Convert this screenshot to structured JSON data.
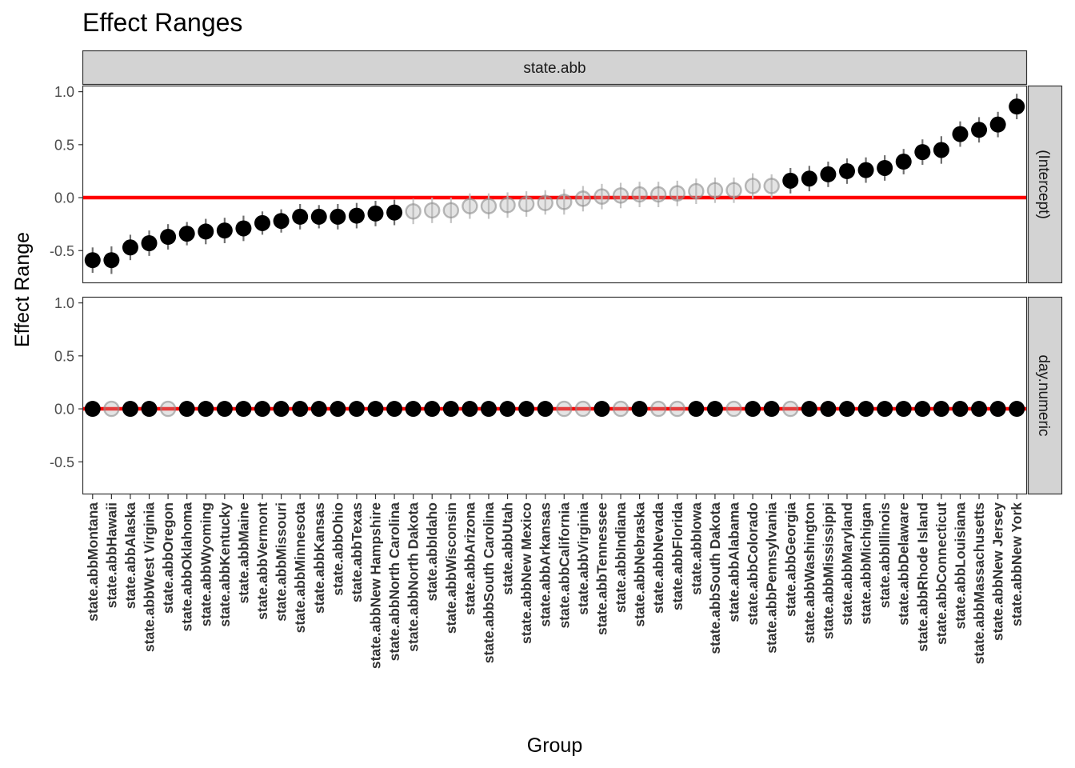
{
  "chart_data": {
    "type": "scatter",
    "title": "Effect Ranges",
    "xlabel": "Group",
    "ylabel": "Effect Range",
    "column_strip": "state.abb",
    "ylim": [
      -0.8,
      1.05
    ],
    "yticks": [
      -0.5,
      0.0,
      0.5,
      1.0
    ],
    "ytick_labels": [
      "-0.5",
      "0.0",
      "0.5",
      "1.0"
    ],
    "reference_line": 0,
    "grid": false,
    "colors": {
      "significant": "#000000",
      "not_significant": "#b3b3b3",
      "reference_line": "#ff0000",
      "strip_fill": "#d3d3d3",
      "error_bar": "#bdbdbd"
    },
    "categories": [
      "state.abbMontana",
      "state.abbHawaii",
      "state.abbAlaska",
      "state.abbWest Virginia",
      "state.abbOregon",
      "state.abbOklahoma",
      "state.abbWyoming",
      "state.abbKentucky",
      "state.abbMaine",
      "state.abbVermont",
      "state.abbMissouri",
      "state.abbMinnesota",
      "state.abbKansas",
      "state.abbOhio",
      "state.abbTexas",
      "state.abbNew Hampshire",
      "state.abbNorth Carolina",
      "state.abbNorth Dakota",
      "state.abbIdaho",
      "state.abbWisconsin",
      "state.abbArizona",
      "state.abbSouth Carolina",
      "state.abbUtah",
      "state.abbNew Mexico",
      "state.abbArkansas",
      "state.abbCalifornia",
      "state.abbVirginia",
      "state.abbTennessee",
      "state.abbIndiana",
      "state.abbNebraska",
      "state.abbNevada",
      "state.abbFlorida",
      "state.abbIowa",
      "state.abbSouth Dakota",
      "state.abbAlabama",
      "state.abbColorado",
      "state.abbPennsylvania",
      "state.abbGeorgia",
      "state.abbWashington",
      "state.abbMississippi",
      "state.abbMaryland",
      "state.abbMichigan",
      "state.abbIllinois",
      "state.abbDelaware",
      "state.abbRhode Island",
      "state.abbConnecticut",
      "state.abbLouisiana",
      "state.abbMassachusetts",
      "state.abbNew Jersey",
      "state.abbNew York"
    ],
    "panels": [
      {
        "name": "(Intercept)",
        "values": [
          -0.59,
          -0.59,
          -0.47,
          -0.43,
          -0.37,
          -0.34,
          -0.32,
          -0.31,
          -0.29,
          -0.24,
          -0.22,
          -0.18,
          -0.18,
          -0.18,
          -0.17,
          -0.15,
          -0.14,
          -0.13,
          -0.12,
          -0.12,
          -0.08,
          -0.08,
          -0.07,
          -0.06,
          -0.05,
          -0.04,
          -0.01,
          0.01,
          0.02,
          0.03,
          0.03,
          0.04,
          0.06,
          0.07,
          0.07,
          0.11,
          0.11,
          0.16,
          0.18,
          0.22,
          0.25,
          0.26,
          0.28,
          0.34,
          0.43,
          0.45,
          0.6,
          0.64,
          0.69,
          0.86
        ],
        "lower": [
          -0.71,
          -0.72,
          -0.59,
          -0.55,
          -0.49,
          -0.45,
          -0.44,
          -0.43,
          -0.41,
          -0.35,
          -0.33,
          -0.3,
          -0.29,
          -0.3,
          -0.29,
          -0.27,
          -0.26,
          -0.25,
          -0.24,
          -0.24,
          -0.2,
          -0.2,
          -0.19,
          -0.18,
          -0.16,
          -0.16,
          -0.13,
          -0.11,
          -0.1,
          -0.09,
          -0.09,
          -0.08,
          -0.06,
          -0.05,
          -0.05,
          -0.01,
          0.0,
          0.04,
          0.06,
          0.1,
          0.13,
          0.14,
          0.16,
          0.22,
          0.31,
          0.32,
          0.48,
          0.52,
          0.57,
          0.74
        ],
        "upper": [
          -0.47,
          -0.46,
          -0.35,
          -0.31,
          -0.25,
          -0.23,
          -0.2,
          -0.19,
          -0.17,
          -0.13,
          -0.11,
          -0.06,
          -0.07,
          -0.06,
          -0.05,
          -0.03,
          -0.02,
          -0.01,
          0.0,
          0.0,
          0.04,
          0.04,
          0.05,
          0.06,
          0.07,
          0.08,
          0.11,
          0.13,
          0.14,
          0.15,
          0.15,
          0.16,
          0.18,
          0.19,
          0.19,
          0.23,
          0.22,
          0.28,
          0.3,
          0.34,
          0.37,
          0.38,
          0.4,
          0.46,
          0.55,
          0.58,
          0.72,
          0.76,
          0.81,
          0.98
        ],
        "significant": [
          true,
          true,
          true,
          true,
          true,
          true,
          true,
          true,
          true,
          true,
          true,
          true,
          true,
          true,
          true,
          true,
          true,
          false,
          false,
          false,
          false,
          false,
          false,
          false,
          false,
          false,
          false,
          false,
          false,
          false,
          false,
          false,
          false,
          false,
          false,
          false,
          false,
          true,
          true,
          true,
          true,
          true,
          true,
          true,
          true,
          true,
          true,
          true,
          true,
          true
        ]
      },
      {
        "name": "day.numeric",
        "values": [
          0,
          0,
          0,
          0,
          0,
          0,
          0,
          0,
          0,
          0,
          0,
          0,
          0,
          0,
          0,
          0,
          0,
          0,
          0,
          0,
          0,
          0,
          0,
          0,
          0,
          0,
          0,
          0,
          0,
          0,
          0,
          0,
          0,
          0,
          0,
          0,
          0,
          0,
          0,
          0,
          0,
          0,
          0,
          0,
          0,
          0,
          0,
          0,
          0,
          0
        ],
        "significant": [
          true,
          false,
          true,
          true,
          false,
          true,
          true,
          true,
          true,
          true,
          true,
          true,
          true,
          true,
          true,
          true,
          true,
          true,
          true,
          true,
          true,
          true,
          true,
          true,
          true,
          false,
          false,
          true,
          false,
          true,
          false,
          false,
          true,
          true,
          false,
          true,
          true,
          false,
          true,
          true,
          true,
          true,
          true,
          true,
          true,
          true,
          true,
          true,
          true,
          true
        ]
      }
    ]
  }
}
